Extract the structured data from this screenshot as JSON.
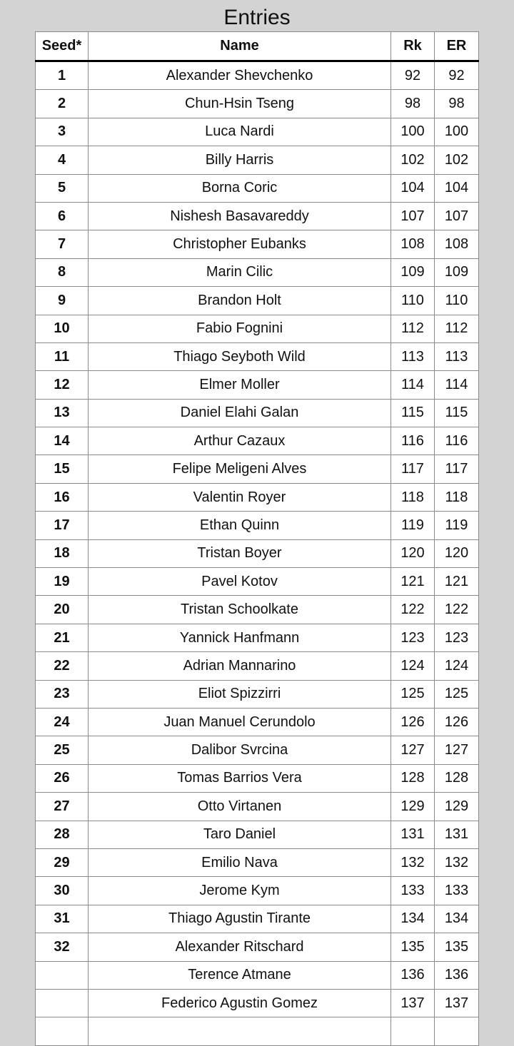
{
  "title": "Entries",
  "columns": {
    "seed": "Seed*",
    "name": "Name",
    "rk": "Rk",
    "er": "ER"
  },
  "rows": [
    {
      "seed": "1",
      "name": "Alexander Shevchenko",
      "rk": "92",
      "er": "92"
    },
    {
      "seed": "2",
      "name": "Chun-Hsin Tseng",
      "rk": "98",
      "er": "98"
    },
    {
      "seed": "3",
      "name": "Luca Nardi",
      "rk": "100",
      "er": "100"
    },
    {
      "seed": "4",
      "name": "Billy Harris",
      "rk": "102",
      "er": "102"
    },
    {
      "seed": "5",
      "name": "Borna Coric",
      "rk": "104",
      "er": "104"
    },
    {
      "seed": "6",
      "name": "Nishesh Basavareddy",
      "rk": "107",
      "er": "107"
    },
    {
      "seed": "7",
      "name": "Christopher Eubanks",
      "rk": "108",
      "er": "108"
    },
    {
      "seed": "8",
      "name": "Marin Cilic",
      "rk": "109",
      "er": "109"
    },
    {
      "seed": "9",
      "name": "Brandon Holt",
      "rk": "110",
      "er": "110"
    },
    {
      "seed": "10",
      "name": "Fabio Fognini",
      "rk": "112",
      "er": "112"
    },
    {
      "seed": "11",
      "name": "Thiago Seyboth Wild",
      "rk": "113",
      "er": "113"
    },
    {
      "seed": "12",
      "name": "Elmer Moller",
      "rk": "114",
      "er": "114"
    },
    {
      "seed": "13",
      "name": "Daniel Elahi Galan",
      "rk": "115",
      "er": "115"
    },
    {
      "seed": "14",
      "name": "Arthur Cazaux",
      "rk": "116",
      "er": "116"
    },
    {
      "seed": "15",
      "name": "Felipe Meligeni Alves",
      "rk": "117",
      "er": "117"
    },
    {
      "seed": "16",
      "name": "Valentin Royer",
      "rk": "118",
      "er": "118"
    },
    {
      "seed": "17",
      "name": "Ethan Quinn",
      "rk": "119",
      "er": "119"
    },
    {
      "seed": "18",
      "name": "Tristan Boyer",
      "rk": "120",
      "er": "120"
    },
    {
      "seed": "19",
      "name": "Pavel Kotov",
      "rk": "121",
      "er": "121"
    },
    {
      "seed": "20",
      "name": "Tristan Schoolkate",
      "rk": "122",
      "er": "122"
    },
    {
      "seed": "21",
      "name": "Yannick Hanfmann",
      "rk": "123",
      "er": "123"
    },
    {
      "seed": "22",
      "name": "Adrian Mannarino",
      "rk": "124",
      "er": "124"
    },
    {
      "seed": "23",
      "name": "Eliot Spizzirri",
      "rk": "125",
      "er": "125"
    },
    {
      "seed": "24",
      "name": "Juan Manuel Cerundolo",
      "rk": "126",
      "er": "126"
    },
    {
      "seed": "25",
      "name": "Dalibor Svrcina",
      "rk": "127",
      "er": "127"
    },
    {
      "seed": "26",
      "name": "Tomas Barrios Vera",
      "rk": "128",
      "er": "128"
    },
    {
      "seed": "27",
      "name": "Otto Virtanen",
      "rk": "129",
      "er": "129"
    },
    {
      "seed": "28",
      "name": "Taro Daniel",
      "rk": "131",
      "er": "131"
    },
    {
      "seed": "29",
      "name": "Emilio Nava",
      "rk": "132",
      "er": "132"
    },
    {
      "seed": "30",
      "name": "Jerome Kym",
      "rk": "133",
      "er": "133"
    },
    {
      "seed": "31",
      "name": "Thiago Agustin Tirante",
      "rk": "134",
      "er": "134"
    },
    {
      "seed": "32",
      "name": "Alexander Ritschard",
      "rk": "135",
      "er": "135"
    },
    {
      "seed": "",
      "name": "Terence Atmane",
      "rk": "136",
      "er": "136"
    },
    {
      "seed": "",
      "name": "Federico Agustin Gomez",
      "rk": "137",
      "er": "137"
    },
    {
      "seed": "",
      "name": "",
      "rk": "",
      "er": ""
    }
  ]
}
